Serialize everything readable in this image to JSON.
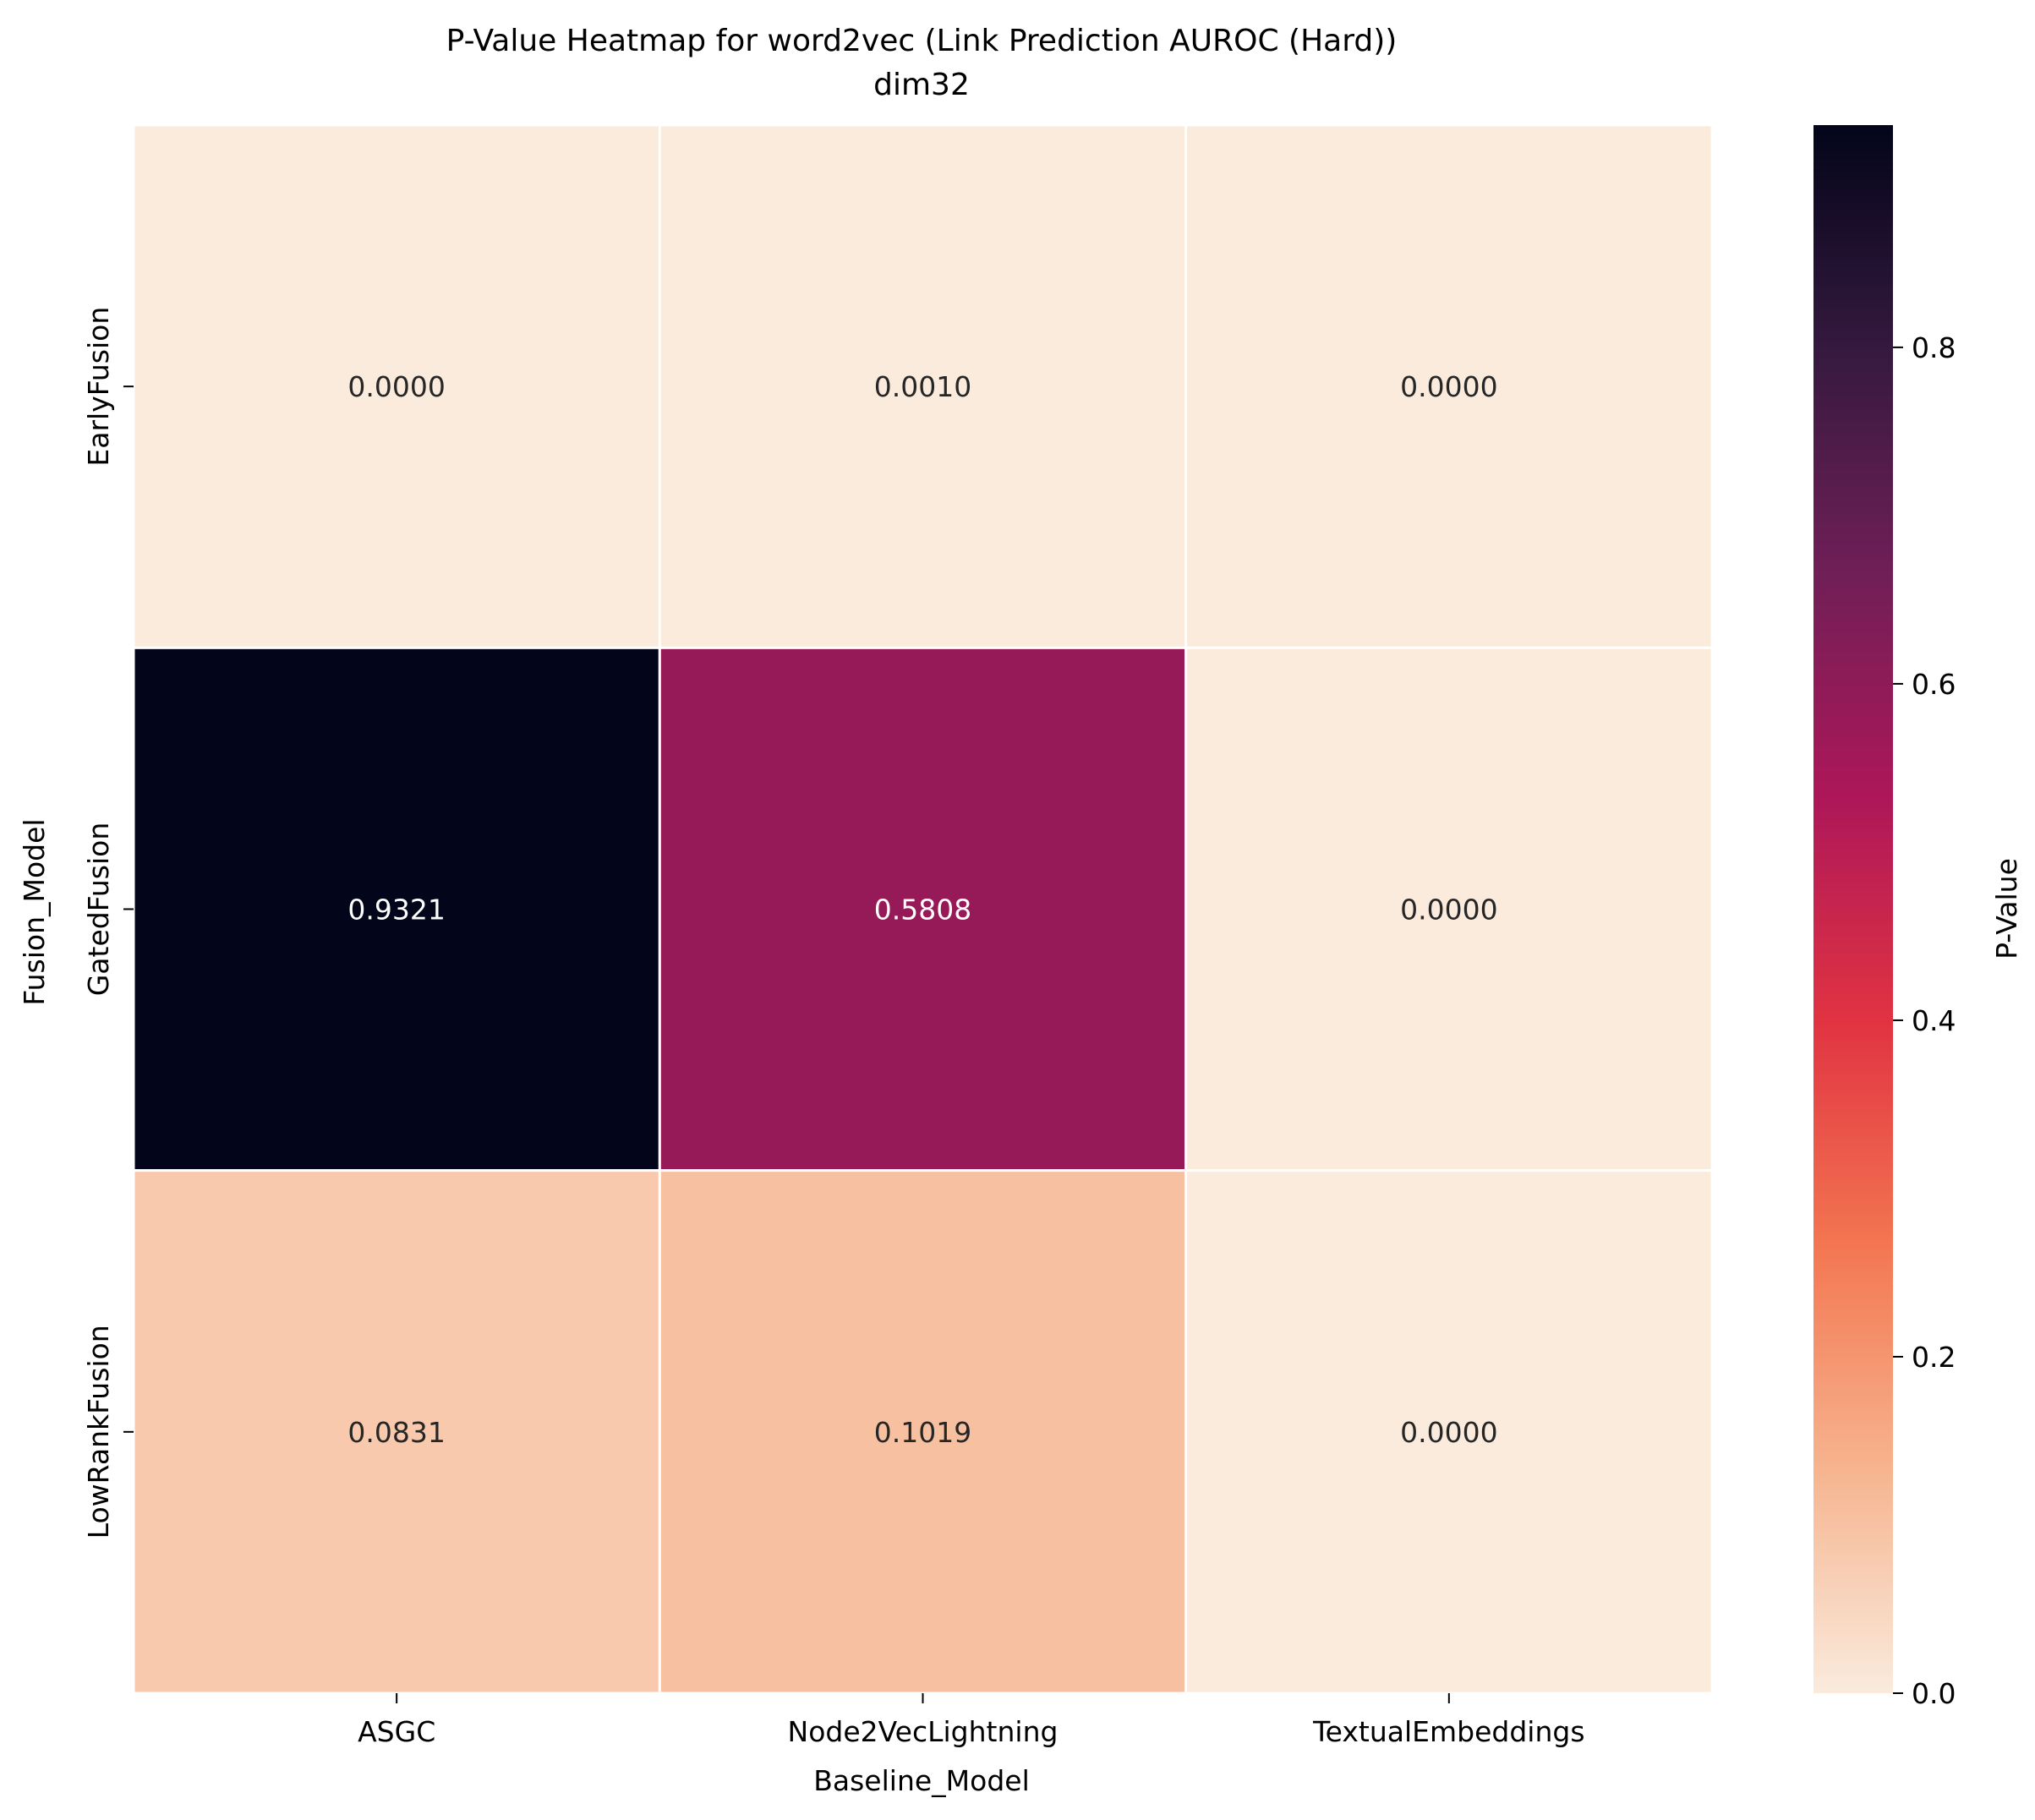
{
  "chart_data": {
    "type": "heatmap",
    "title": "P-Value Heatmap for word2vec (Link Prediction AUROC (Hard))",
    "subtitle": "dim32",
    "xlabel": "Baseline_Model",
    "ylabel": "Fusion_Model",
    "x_categories": [
      "ASGC",
      "Node2VecLightning",
      "TextualEmbeddings"
    ],
    "y_categories": [
      "EarlyFusion",
      "GatedFusion",
      "LowRankFusion"
    ],
    "values": [
      [
        0.0,
        0.001,
        0.0
      ],
      [
        0.9321,
        0.5808,
        0.0
      ],
      [
        0.0831,
        0.1019,
        0.0
      ]
    ],
    "cell_labels": [
      [
        "0.0000",
        "0.0010",
        "0.0000"
      ],
      [
        "0.9321",
        "0.5808",
        "0.0000"
      ],
      [
        "0.0831",
        "0.1019",
        "0.0000"
      ]
    ],
    "colorbar": {
      "label": "P-Value",
      "range": [
        0.0,
        0.9321
      ],
      "ticks": [
        0.0,
        0.2,
        0.4,
        0.6,
        0.8
      ],
      "tick_labels": [
        "0.0",
        "0.2",
        "0.4",
        "0.6",
        "0.8"
      ],
      "colormap": "rocket_r",
      "colors": [
        "#faebdd",
        "#f6b48f",
        "#f37651",
        "#e13342",
        "#ad1759",
        "#701f57",
        "#35193e",
        "#03051a"
      ]
    },
    "grid": false
  }
}
